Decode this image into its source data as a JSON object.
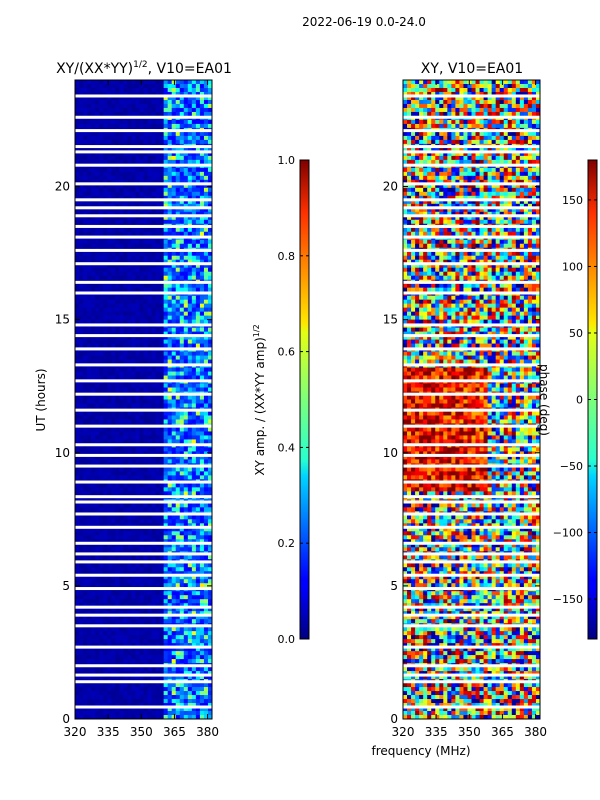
{
  "figure": {
    "suptitle": "2022-06-19 0.0-24.0",
    "xlabel": "frequency (MHz)"
  },
  "chart_data": [
    {
      "type": "heatmap",
      "title": "XY/(XX*YY)",
      "title_exp": "1/2",
      "title_suffix": ", V10=EA01",
      "xlabel": "",
      "ylabel": "UT (hours)",
      "xlim": [
        320,
        382
      ],
      "ylim": [
        0,
        24
      ],
      "xticks": [
        "320",
        "335",
        "350",
        "365",
        "380"
      ],
      "xtick_values": [
        320,
        335,
        350,
        365,
        380
      ],
      "yticks": [
        "0",
        "5",
        "10",
        "15",
        "20"
      ],
      "ytick_values": [
        0,
        5,
        10,
        15,
        20
      ],
      "colorbar": {
        "label": "XY amp. / (XX*YY amp)",
        "label_exp": "1/2",
        "range": [
          0.0,
          1.0
        ],
        "ticks": [
          "0.0",
          "0.2",
          "0.4",
          "0.6",
          "0.8",
          "1.0"
        ],
        "tick_values": [
          0.0,
          0.2,
          0.4,
          0.6,
          0.8,
          1.0
        ]
      },
      "description": "Normalized amplitude near 0 below ~360 MHz; 0.2-0.5 speckle above 360 MHz; white gaps are flagged times",
      "gap_hours": [
        0.45,
        1.4,
        1.65,
        2.0,
        2.7,
        3.5,
        3.9,
        4.2,
        4.9,
        5.4,
        5.9,
        6.2,
        6.6,
        7.2,
        7.7,
        8.15,
        8.35,
        8.9,
        9.5,
        9.9,
        10.3,
        11.0,
        11.6,
        12.2,
        12.7,
        13.3,
        13.9,
        14.4,
        14.8,
        16.0,
        16.4,
        17.1,
        17.6,
        18.1,
        18.5,
        18.9,
        19.2,
        19.5,
        20.1,
        20.8,
        21.3,
        21.5,
        22.1,
        22.6,
        23.4
      ]
    },
    {
      "type": "heatmap",
      "title": "XY, V10=EA01",
      "xlabel": "frequency (MHz)",
      "ylabel": "",
      "xlim": [
        320,
        382
      ],
      "ylim": [
        0,
        24
      ],
      "xticks": [
        "320",
        "335",
        "350",
        "365",
        "380"
      ],
      "xtick_values": [
        320,
        335,
        350,
        365,
        380
      ],
      "yticks": [
        "0",
        "5",
        "10",
        "15",
        "20"
      ],
      "ytick_values": [
        0,
        5,
        10,
        15,
        20
      ],
      "colorbar": {
        "label": "phase (deg)",
        "range": [
          -180,
          180
        ],
        "ticks": [
          "−150",
          "−100",
          "−50",
          "0",
          "50",
          "100",
          "150"
        ],
        "tick_values": [
          -150,
          -100,
          -50,
          0,
          50,
          100,
          150
        ]
      },
      "description": "Cross-hand phase, noisy -180..180 deg; dominated by positive (red) phase around 8.5-13 h below ~360 MHz",
      "gap_hours": [
        0.45,
        1.4,
        1.65,
        2.0,
        2.7,
        3.5,
        3.9,
        4.2,
        4.9,
        5.4,
        5.9,
        6.2,
        6.6,
        7.2,
        7.7,
        8.15,
        8.35,
        8.9,
        9.5,
        9.9,
        10.3,
        11.0,
        11.6,
        12.2,
        12.7,
        13.3,
        13.9,
        14.4,
        14.8,
        16.0,
        16.4,
        17.1,
        17.6,
        18.1,
        18.5,
        18.9,
        19.2,
        19.5,
        20.1,
        20.8,
        21.3,
        21.5,
        22.1,
        22.6,
        23.4
      ]
    }
  ]
}
